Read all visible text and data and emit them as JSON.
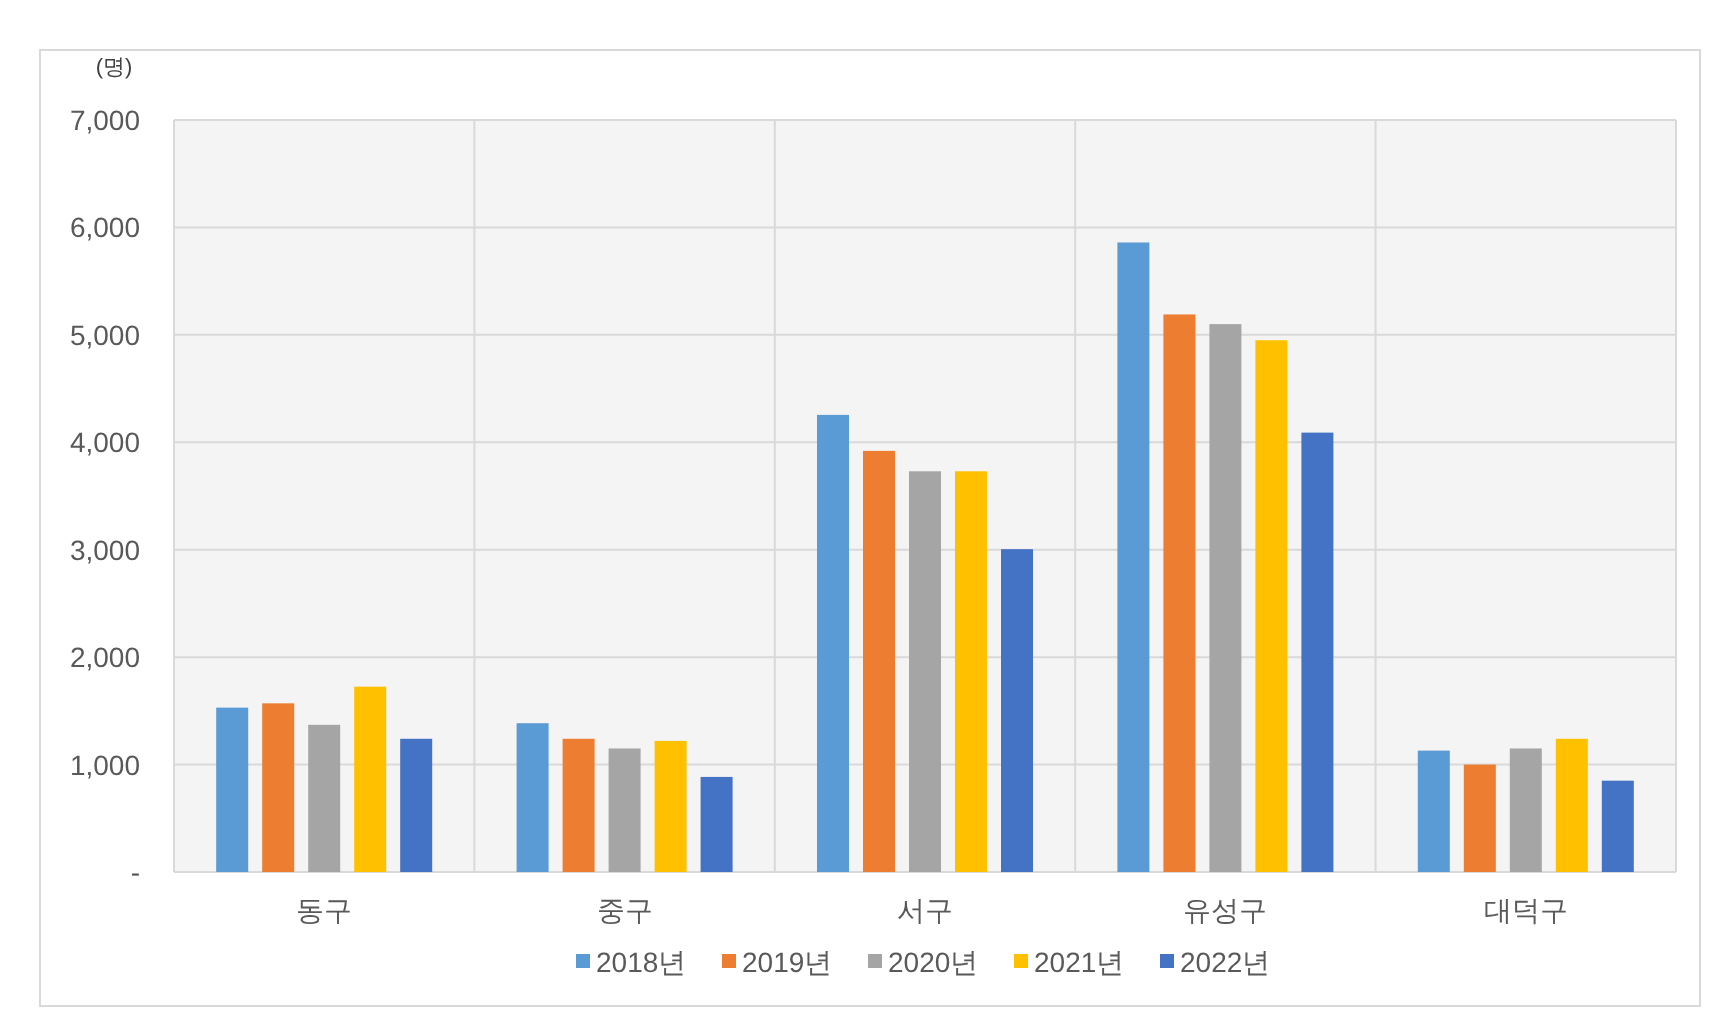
{
  "chart_data": {
    "type": "bar",
    "ylabel": "(명)",
    "categories": [
      "동구",
      "중구",
      "서구",
      "유성구",
      "대덕구"
    ],
    "series": [
      {
        "name": "2018년",
        "color": "#5b9bd5",
        "values": [
          1530,
          1385,
          4255,
          5860,
          1130
        ]
      },
      {
        "name": "2019년",
        "color": "#ed7d31",
        "values": [
          1570,
          1240,
          3920,
          5190,
          1000
        ]
      },
      {
        "name": "2020년",
        "color": "#a5a5a5",
        "values": [
          1370,
          1150,
          3730,
          5100,
          1150
        ]
      },
      {
        "name": "2021년",
        "color": "#ffc000",
        "values": [
          1725,
          1220,
          3730,
          4950,
          1240
        ]
      },
      {
        "name": "2022년",
        "color": "#4472c4",
        "values": [
          1240,
          885,
          3005,
          4090,
          850
        ]
      }
    ],
    "ylim": [
      0,
      7000
    ],
    "yticks": [
      {
        "value": 0,
        "label": "-"
      },
      {
        "value": 1000,
        "label": "1,000"
      },
      {
        "value": 2000,
        "label": "2,000"
      },
      {
        "value": 3000,
        "label": "3,000"
      },
      {
        "value": 4000,
        "label": "4,000"
      },
      {
        "value": 5000,
        "label": "5,000"
      },
      {
        "value": 6000,
        "label": "6,000"
      },
      {
        "value": 7000,
        "label": "7,000"
      }
    ],
    "grid": true,
    "legend": "bottom"
  }
}
